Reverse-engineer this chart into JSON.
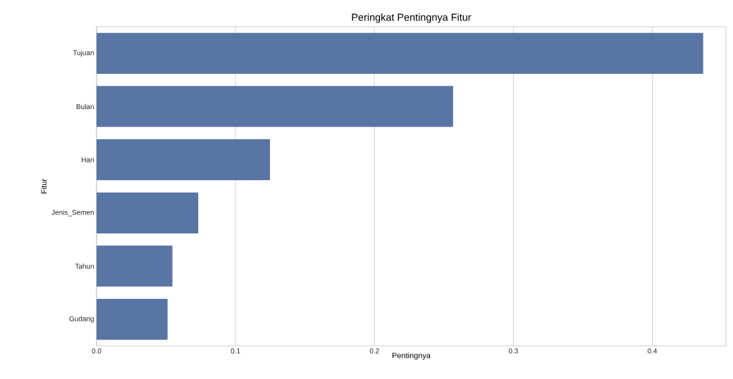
{
  "chart_data": {
    "type": "bar",
    "orientation": "horizontal",
    "title": "Peringkat Pentingnya Fitur",
    "xlabel": "Pentingnya",
    "ylabel": "Fitur",
    "categories": [
      "Tujuan",
      "Bulan",
      "Hari",
      "Jenis_Semen",
      "Tahun",
      "Gudang"
    ],
    "values": [
      0.4366,
      0.2566,
      0.1248,
      0.0732,
      0.0546,
      0.0511
    ],
    "color": "#5975a4",
    "xlim": [
      0,
      0.453
    ],
    "xticks": [
      {
        "value": 0,
        "label": "0.0"
      },
      {
        "value": 0.1,
        "label": "0.1"
      },
      {
        "value": 0.2,
        "label": "0.2"
      },
      {
        "value": 0.3,
        "label": "0.3"
      },
      {
        "value": 0.4,
        "label": "0.4"
      }
    ],
    "grid": "x"
  }
}
